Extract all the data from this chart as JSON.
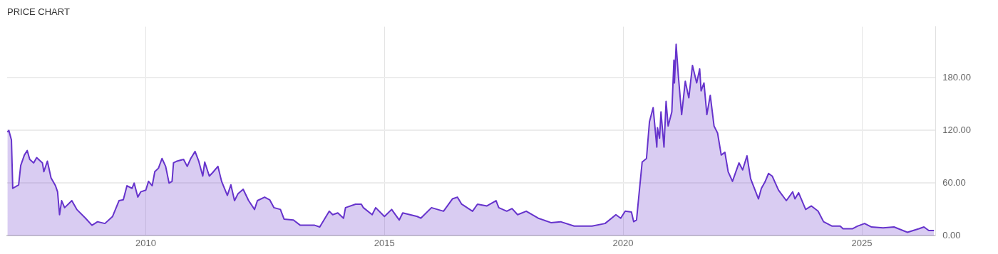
{
  "chart_data": {
    "type": "area",
    "title": "PRICE CHART",
    "x": [
      "2007-02-07",
      "2007-02-18",
      "2007-03-10",
      "2007-03-20",
      "2007-05-04",
      "2007-05-20",
      "2007-06-17",
      "2007-07-09",
      "2007-07-28",
      "2007-08-27",
      "2007-09-19",
      "2007-11-02",
      "2007-11-13",
      "2007-12-10",
      "2008-01-07",
      "2008-02-10",
      "2008-02-26",
      "2008-03-12",
      "2008-03-28",
      "2008-04-20",
      "2008-06-14",
      "2008-07-22",
      "2008-09-27",
      "2008-11-15",
      "2008-12-28",
      "2009-02-22",
      "2009-04-22",
      "2009-06-10",
      "2009-07-13",
      "2009-08-10",
      "2009-09-18",
      "2009-10-04",
      "2009-11-01",
      "2009-11-23",
      "2010-01-01",
      "2010-01-22",
      "2010-02-19",
      "2010-03-11",
      "2010-04-08",
      "2010-05-05",
      "2010-06-02",
      "2010-06-28",
      "2010-07-21",
      "2010-08-01",
      "2010-08-28",
      "2010-10-17",
      "2010-11-14",
      "2010-12-11",
      "2011-01-13",
      "2011-02-10",
      "2011-03-13",
      "2011-03-28",
      "2011-05-02",
      "2011-05-28",
      "2011-07-07",
      "2011-08-04",
      "2011-09-17",
      "2011-10-14",
      "2011-11-11",
      "2011-12-08",
      "2012-01-16",
      "2012-02-27",
      "2012-04-12",
      "2012-05-04",
      "2012-06-28",
      "2012-08-06",
      "2012-09-08",
      "2012-10-27",
      "2012-11-24",
      "2013-02-04",
      "2013-03-28",
      "2013-06-08",
      "2013-07-16",
      "2013-08-24",
      "2013-11-05",
      "2013-12-01",
      "2014-01-09",
      "2014-02-22",
      "2014-03-09",
      "2014-05-25",
      "2014-07-08",
      "2014-07-24",
      "2014-09-29",
      "2014-10-26",
      "2015-01-01",
      "2015-02-25",
      "2015-04-24",
      "2015-05-21",
      "2015-09-09",
      "2015-10-06",
      "2015-12-27",
      "2016-03-28",
      "2016-06-04",
      "2016-07-12",
      "2016-08-14",
      "2016-11-05",
      "2016-12-13",
      "2017-02-23",
      "2017-05-04",
      "2017-05-25",
      "2017-07-25",
      "2017-09-03",
      "2017-10-16",
      "2017-12-21",
      "2018-03-23",
      "2018-06-28",
      "2018-09-10",
      "2018-12-23",
      "2019-05-08",
      "2019-08-16",
      "2019-11-07",
      "2019-12-14",
      "2020-01-17",
      "2020-03-05",
      "2020-03-22",
      "2020-04-13",
      "2020-05-05",
      "2020-05-26",
      "2020-06-28",
      "2020-07-21",
      "2020-08-18",
      "2020-09-15",
      "2020-09-20",
      "2020-10-06",
      "2020-10-17",
      "2020-11-09",
      "2020-11-25",
      "2020-12-11",
      "2021-01-08",
      "2021-01-24",
      "2021-01-28",
      "2021-02-10",
      "2021-02-27",
      "2021-03-24",
      "2021-04-21",
      "2021-05-18",
      "2021-06-15",
      "2021-07-17",
      "2021-08-09",
      "2021-08-20",
      "2021-09-11",
      "2021-10-03",
      "2021-10-29",
      "2021-11-27",
      "2021-12-24",
      "2022-01-21",
      "2022-02-18",
      "2022-03-15",
      "2022-04-17",
      "2022-06-06",
      "2022-07-04",
      "2022-08-06",
      "2022-09-03",
      "2022-11-02",
      "2022-11-24",
      "2022-12-21",
      "2023-01-18",
      "2023-02-15",
      "2023-04-04",
      "2023-06-03",
      "2023-07-22",
      "2023-08-08",
      "2023-09-05",
      "2023-10-29",
      "2023-12-12",
      "2024-02-01",
      "2024-03-14",
      "2024-05-19",
      "2024-07-19",
      "2024-08-10",
      "2024-10-20",
      "2024-11-28",
      "2025-01-22",
      "2025-03-16",
      "2025-06-13",
      "2025-09-04",
      "2025-12-16",
      "2026-03-13",
      "2026-04-21",
      "2026-05-28",
      "2026-07-07"
    ],
    "series": [
      {
        "color": "#6633cc",
        "values": [
          118,
          120,
          109,
          54,
          58,
          80,
          92,
          97,
          87,
          83,
          89,
          83,
          73,
          85,
          66,
          57,
          50,
          24,
          40,
          32,
          40,
          30,
          20,
          12,
          16,
          14,
          22,
          40,
          41,
          57,
          54,
          60,
          44,
          50,
          52,
          62,
          57,
          73,
          77,
          88,
          79,
          60,
          62,
          83,
          85,
          87,
          79,
          88,
          96,
          85,
          68,
          84,
          68,
          72,
          79,
          62,
          46,
          58,
          40,
          48,
          53,
          40,
          30,
          40,
          44,
          41,
          32,
          30,
          19,
          18,
          12,
          12,
          12,
          10,
          28,
          24,
          26,
          20,
          32,
          36,
          36,
          32,
          24,
          32,
          22,
          30,
          18,
          26,
          22,
          20,
          32,
          28,
          42,
          44,
          36,
          28,
          36,
          34,
          40,
          32,
          28,
          31,
          24,
          28,
          20,
          15,
          16,
          11,
          11,
          14,
          24,
          20,
          28,
          27,
          16,
          18,
          52,
          84,
          88,
          130,
          146,
          101,
          123,
          111,
          141,
          101,
          153,
          125,
          141,
          200,
          174,
          218,
          182,
          138,
          176,
          157,
          194,
          174,
          190,
          165,
          174,
          138,
          160,
          125,
          117,
          92,
          95,
          73,
          62,
          83,
          75,
          91,
          65,
          42,
          54,
          61,
          71,
          68,
          52,
          40,
          50,
          42,
          49,
          30,
          34,
          28,
          16,
          11,
          11,
          8,
          8,
          11,
          14,
          10,
          9,
          10,
          4,
          8,
          10,
          6,
          6
        ]
      }
    ],
    "xlim": [
      "2007-02-05",
      "2026-07-18"
    ],
    "xticks": [
      "2010",
      "2015",
      "2020",
      "2025"
    ],
    "ylim": [
      0,
      238
    ],
    "yticks": [
      {
        "value": 0,
        "label": "0.00"
      },
      {
        "value": 60,
        "label": "60.00"
      },
      {
        "value": 120,
        "label": "120.00"
      },
      {
        "value": 180,
        "label": "180.00"
      }
    ],
    "grid": true,
    "legend": false
  }
}
